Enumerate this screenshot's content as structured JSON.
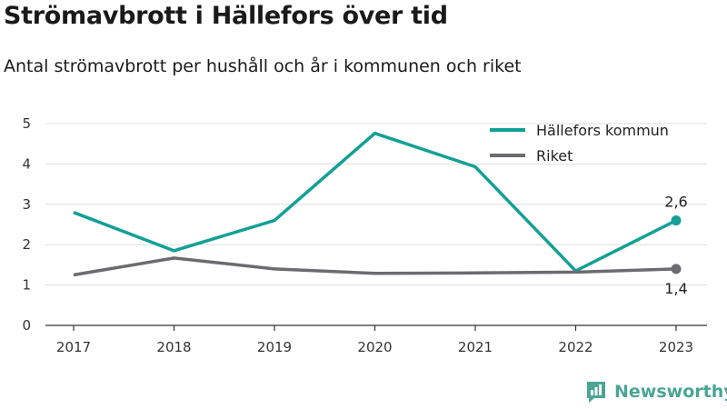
{
  "title": "Strömavbrott i Hällefors över tid",
  "subtitle": "Antal strömavbrott per hushåll och år i kommunen och riket",
  "brand": {
    "name": "Newsworthy",
    "icon": "newsworthy-logo-icon",
    "color": "#4aa596"
  },
  "chart_data": {
    "type": "line",
    "x": [
      "2017",
      "2018",
      "2019",
      "2020",
      "2021",
      "2022",
      "2023"
    ],
    "ylim": [
      0,
      5
    ],
    "yticks": [
      "0",
      "1",
      "2",
      "3",
      "4",
      "5"
    ],
    "grid": true,
    "legend_position": "top-right",
    "series": [
      {
        "name": "Hällefors kommun",
        "color": "#13a096",
        "values": [
          2.8,
          1.85,
          2.6,
          4.76,
          3.93,
          1.35,
          2.6
        ],
        "end_label": "2,6"
      },
      {
        "name": "Riket",
        "color": "#6b6b70",
        "values": [
          1.25,
          1.67,
          1.4,
          1.29,
          1.3,
          1.32,
          1.4
        ],
        "end_label": "1,4"
      }
    ]
  }
}
